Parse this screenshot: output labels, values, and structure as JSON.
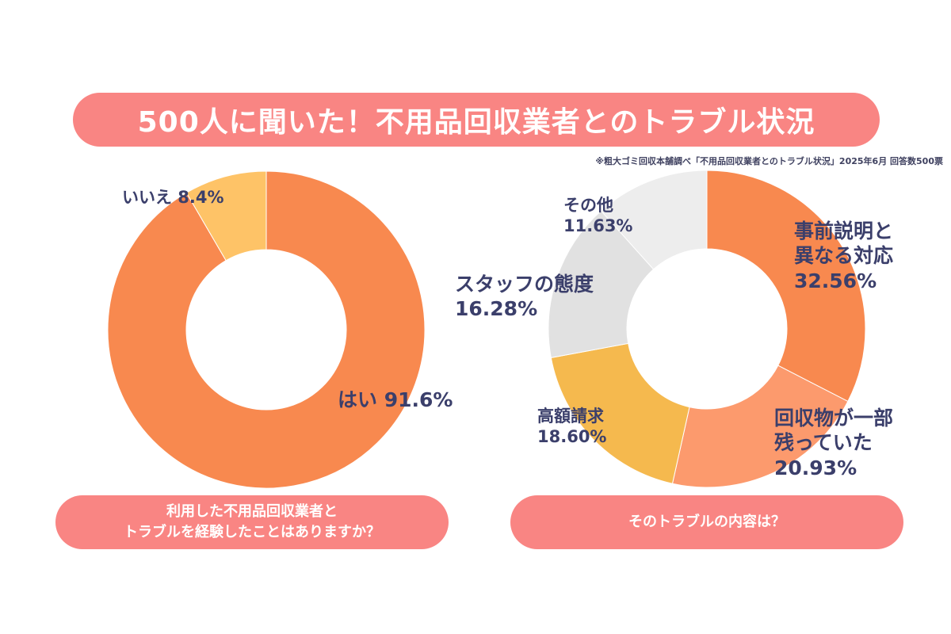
{
  "title": "500人に聞いた！不用品回収業者とのトラブル状況",
  "source_note": "※粗大ゴミ回収本舗調べ「不用品回収業者とのトラブル状況」2025年6月 回答数500票",
  "colors": {
    "header_pill": "#f98583",
    "label_text": "#3b3f6b"
  },
  "chart_data": [
    {
      "type": "pie",
      "subtype": "donut",
      "question": "利用した不用品回収業者と\nトラブルを経験したことはありますか？",
      "slices": [
        {
          "label": "はい",
          "value": 91.6,
          "display": "はい 91.6%",
          "color": "#f8894f"
        },
        {
          "label": "いいえ",
          "value": 8.4,
          "display": "いいえ 8.4%",
          "color": "#fec367"
        }
      ]
    },
    {
      "type": "pie",
      "subtype": "donut",
      "question": "そのトラブルの内容は？",
      "slices": [
        {
          "label": "事前説明と異なる対応",
          "value": 32.56,
          "display": "事前説明と\n異なる対応\n32.56%",
          "color": "#f8894f"
        },
        {
          "label": "回収物が一部残っていた",
          "value": 20.93,
          "display": "回収物が一部\n残っていた\n20.93%",
          "color": "#fc9a6d"
        },
        {
          "label": "高額請求",
          "value": 18.6,
          "display": "高額請求\n18.60%",
          "color": "#f5b94e"
        },
        {
          "label": "スタッフの態度",
          "value": 16.28,
          "display": "スタッフの態度\n16.28%",
          "color": "#e1e1e1"
        },
        {
          "label": "その他",
          "value": 11.63,
          "display": "その他\n11.63%",
          "color": "#ededed"
        }
      ]
    }
  ]
}
